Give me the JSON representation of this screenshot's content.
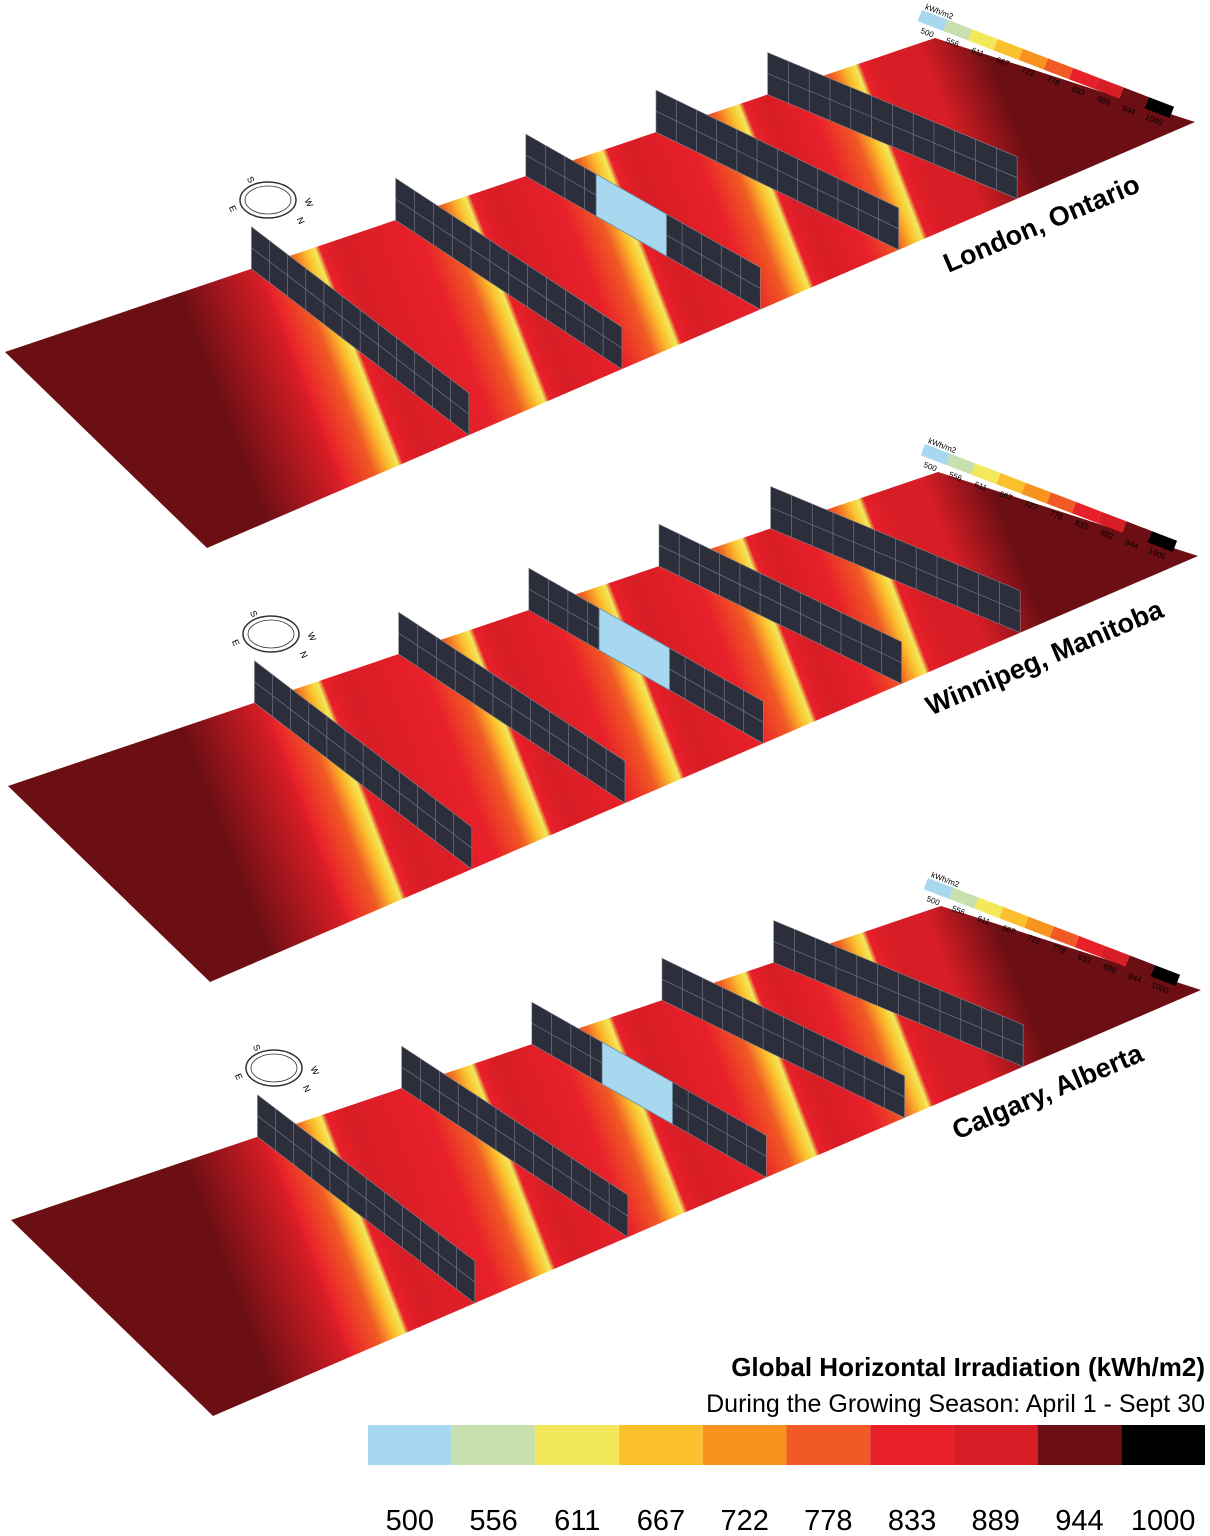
{
  "panels": [
    {
      "label": "London, Ontario"
    },
    {
      "label": "Winnipeg, Manitoba"
    },
    {
      "label": "Calgary, Alberta"
    }
  ],
  "compass": {
    "labels": [
      "S",
      "W",
      "N",
      "E"
    ]
  },
  "scene_legend": {
    "unit": "kWh/m2"
  },
  "legend": {
    "title": "Global Horizontal Irradiation (kWh/m2)",
    "subtitle": "During the Growing Season: April 1 - Sept 30",
    "colors": [
      "#a8d8f0",
      "#c8e0b0",
      "#f2e85a",
      "#fbc02d",
      "#f7931e",
      "#f15a24",
      "#e8202a",
      "#d71d25",
      "#6b0f14",
      "#000000"
    ],
    "labels": [
      500,
      556,
      611,
      667,
      722,
      778,
      833,
      889,
      944,
      1000
    ]
  }
}
